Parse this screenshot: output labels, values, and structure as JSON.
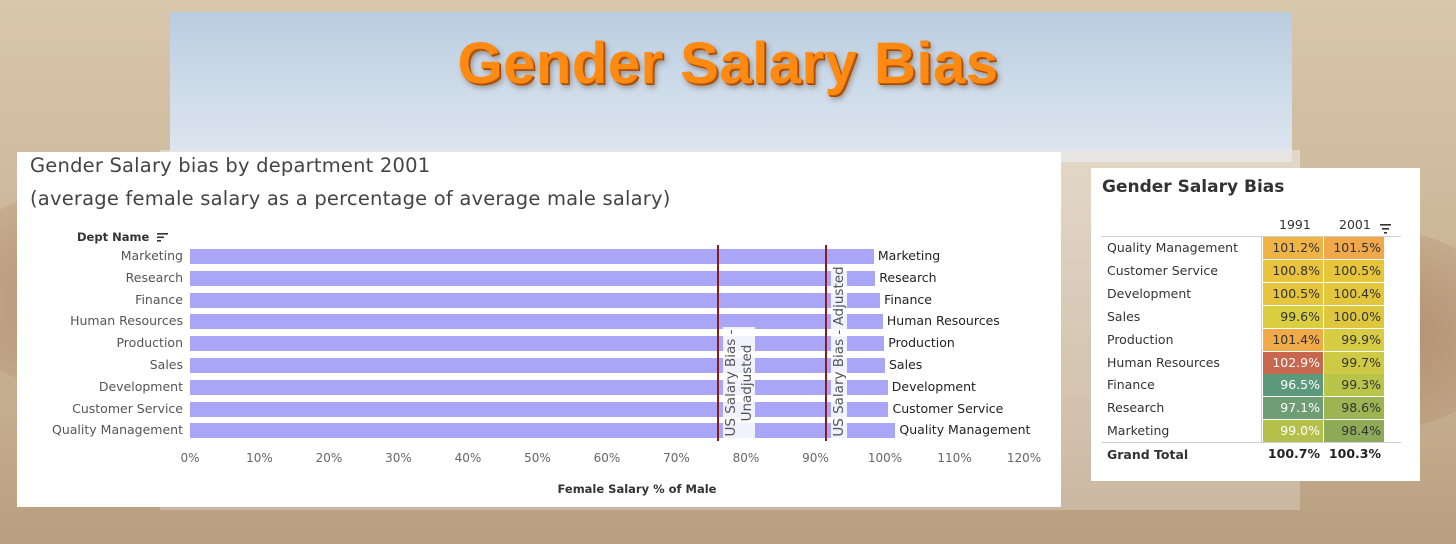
{
  "page": {
    "main_title": "Gender Salary Bias"
  },
  "bar_chart": {
    "title_line1": "Gender Salary bias by department 2001",
    "title_line2": "(average female salary as a percentage of average male salary)",
    "dept_header": "Dept Name",
    "xlabel": "Female Salary % of Male",
    "ref_unadjusted_label": "US Salary Bias -\nUnadjusted",
    "ref_adjusted_label": "US Salary Bias - Adjusted",
    "bar_color": "#a9a6f7",
    "ref_color": "#8b1a1a"
  },
  "chart_data": [
    {
      "type": "bar",
      "orientation": "horizontal",
      "title": "Gender Salary bias by department 2001",
      "subtitle": "(average female salary as a percentage of average male salary)",
      "xlabel": "Female Salary % of Male",
      "ylabel": "Dept Name",
      "categories": [
        "Marketing",
        "Research",
        "Finance",
        "Human Resources",
        "Production",
        "Sales",
        "Development",
        "Customer Service",
        "Quality Management"
      ],
      "values": [
        98.4,
        98.6,
        99.3,
        99.7,
        99.9,
        100.0,
        100.4,
        100.5,
        101.5
      ],
      "xlim": [
        0,
        120
      ],
      "xticks": [
        "0%",
        "10%",
        "20%",
        "30%",
        "40%",
        "50%",
        "60%",
        "70%",
        "80%",
        "90%",
        "100%",
        "110%",
        "120%"
      ],
      "xtick_values": [
        0,
        10,
        20,
        30,
        40,
        50,
        60,
        70,
        80,
        90,
        100,
        110,
        120
      ],
      "reference_lines": [
        {
          "label": "US Salary Bias - Unadjusted",
          "value": 76.0
        },
        {
          "label": "US Salary Bias - Adjusted",
          "value": 91.5
        }
      ],
      "grid": false
    },
    {
      "type": "heatmap",
      "title": "Gender Salary Bias",
      "columns": [
        "1991",
        "2001"
      ],
      "rows": [
        "Quality Management",
        "Customer Service",
        "Development",
        "Sales",
        "Production",
        "Human Resources",
        "Finance",
        "Research",
        "Marketing"
      ],
      "values_text": [
        [
          "101.2%",
          "101.5%"
        ],
        [
          "100.8%",
          "100.5%"
        ],
        [
          "100.5%",
          "100.4%"
        ],
        [
          "99.6%",
          "100.0%"
        ],
        [
          "101.4%",
          "99.9%"
        ],
        [
          "102.9%",
          "99.7%"
        ],
        [
          "96.5%",
          "99.3%"
        ],
        [
          "97.1%",
          "98.6%"
        ],
        [
          "99.0%",
          "98.4%"
        ]
      ],
      "values": [
        [
          101.2,
          101.5
        ],
        [
          100.8,
          100.5
        ],
        [
          100.5,
          100.4
        ],
        [
          99.6,
          100.0
        ],
        [
          101.4,
          99.9
        ],
        [
          102.9,
          99.7
        ],
        [
          96.5,
          99.3
        ],
        [
          97.1,
          98.6
        ],
        [
          99.0,
          98.4
        ]
      ],
      "cell_colors": [
        [
          "#f0b446",
          "#f0a84a"
        ],
        [
          "#e9c23e",
          "#e6c43c"
        ],
        [
          "#e6c43c",
          "#e2c63c"
        ],
        [
          "#d9cd42",
          "#dec73e"
        ],
        [
          "#f0aa48",
          "#d8cc44"
        ],
        [
          "#c6674e",
          "#cfca46"
        ],
        [
          "#5c9a7c",
          "#b9c44a"
        ],
        [
          "#6f9e74",
          "#9cb452"
        ],
        [
          "#b3c14c",
          "#8eaa58"
        ]
      ],
      "text_colors": [
        [
          "#333333",
          "#333333"
        ],
        [
          "#333333",
          "#333333"
        ],
        [
          "#333333",
          "#333333"
        ],
        [
          "#333333",
          "#333333"
        ],
        [
          "#333333",
          "#333333"
        ],
        [
          "#ffffff",
          "#333333"
        ],
        [
          "#ffffff",
          "#333333"
        ],
        [
          "#ffffff",
          "#333333"
        ],
        [
          "#ffffff",
          "#333333"
        ]
      ],
      "grand_total_label": "Grand Total",
      "grand_total": [
        "100.7%",
        "100.3%"
      ]
    }
  ]
}
